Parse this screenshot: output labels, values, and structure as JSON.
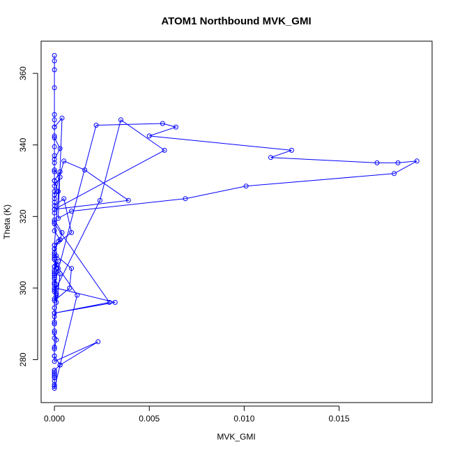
{
  "chart_data": {
    "type": "line",
    "title": "ATOM1 Northbound MVK_GMI",
    "xlabel": "MVK_GMI",
    "ylabel": "Theta (K)",
    "xlim": [
      -0.0007,
      0.0199
    ],
    "ylim": [
      268,
      369
    ],
    "x_ticks": [
      0.0,
      0.005,
      0.01,
      0.015
    ],
    "x_tick_labels": [
      "0.000",
      "0.005",
      "0.010",
      "0.015"
    ],
    "y_ticks": [
      280,
      300,
      320,
      340,
      360
    ],
    "y_tick_labels": [
      "280",
      "300",
      "320",
      "340",
      "360"
    ],
    "marker": "open-circle",
    "colors": {
      "series": "#0000ff",
      "axes": "#000000"
    },
    "grid": false,
    "legend": "none",
    "series": [
      {
        "x": [
          0.0,
          0.0,
          0.0,
          0.0,
          0.0,
          0.0,
          0.0,
          0.0,
          0.0,
          0.0,
          0.0,
          0.0,
          0.0,
          0.0,
          0.0,
          0.0,
          0.0,
          0.0,
          0.0003,
          0.0,
          0.0,
          0.0,
          0.0,
          0.0,
          0.0,
          0.0,
          0.0,
          0.0,
          0.0,
          0.0,
          0.0,
          0.0,
          0.0,
          0.0003,
          0.0,
          0.0,
          0.0,
          0.0,
          0.0,
          0.0,
          0.0,
          0.0012,
          0.0001,
          0.0001,
          0.0,
          0.0,
          0.0001,
          0.0001,
          0.0,
          0.0022,
          0.0057,
          0.0064,
          0.005,
          0.0125,
          0.0114,
          0.017,
          0.0181,
          0.0191,
          0.0179,
          0.0101,
          0.0069,
          0.0009,
          0.0002,
          0.0004,
          0.0,
          0.0,
          0.0003,
          0.0,
          0.0,
          0.0003,
          0.0,
          0.0,
          0.0005,
          0.0016,
          0.0039,
          0.0,
          0.0,
          0.0004,
          0.0003,
          0.0,
          0.0002,
          0.0,
          0.0,
          0.0001,
          0.0,
          0.0,
          0.0001,
          0.0,
          0.0024,
          0.0035,
          0.0058,
          0.0,
          0.0,
          0.0029,
          0.0,
          0.0,
          0.0003,
          0.0,
          0.0,
          0.0002,
          0.0,
          0.0,
          0.0001,
          0.0,
          0.0008,
          0.0009,
          0.0,
          0.0,
          0.0003,
          0.0,
          0.0002,
          0.0,
          0.0,
          0.0005,
          0.0009,
          0.0,
          0.0,
          0.0002,
          0.0,
          0.0,
          0.0,
          0.0001,
          0.0032,
          0.0,
          0.0,
          0.0,
          0.0001,
          0.0,
          0.0,
          0.0,
          0.0023,
          0.0003,
          0.0,
          0.0,
          0.0,
          0.0,
          0.0
        ],
        "y": [
          365.0,
          363.5,
          361.0,
          356.0,
          348.5,
          347.0,
          345.0,
          342.5,
          339.5,
          337.0,
          335.0,
          332.5,
          330.0,
          327.0,
          324.0,
          321.0,
          318.5,
          316.0,
          313.5,
          311.0,
          308.5,
          306.0,
          304.0,
          301.5,
          299.5,
          297.0,
          294.5,
          292.0,
          290.0,
          288.0,
          286.0,
          283.5,
          281.0,
          278.5,
          277.0,
          276.0,
          275.0,
          274.0,
          273.0,
          272.5,
          272.0,
          298.0,
          306.5,
          309.0,
          304.0,
          300.0,
          296.0,
          298.5,
          301.0,
          345.5,
          346.0,
          345.0,
          342.5,
          338.5,
          336.5,
          335.0,
          335.0,
          335.5,
          332.0,
          328.5,
          325.0,
          321.5,
          319.5,
          347.5,
          345.0,
          342.0,
          339.0,
          336.0,
          333.0,
          331.0,
          328.5,
          326.0,
          335.5,
          333.0,
          324.5,
          322.0,
          319.0,
          315.5,
          313.5,
          311.0,
          313.0,
          310.0,
          308.0,
          306.5,
          304.5,
          302.5,
          301.0,
          299.0,
          324.5,
          347.0,
          338.5,
          322.0,
          318.0,
          296.0,
          293.0,
          290.5,
          304.0,
          306.0,
          308.0,
          305.5,
          303.5,
          301.5,
          298.0,
          296.5,
          300.0,
          305.5,
          309.5,
          312.0,
          332.5,
          330.0,
          327.0,
          325.0,
          323.0,
          325.0,
          315.5,
          312.0,
          309.0,
          307.5,
          305.0,
          303.0,
          301.0,
          300.0,
          296.0,
          293.0,
          290.0,
          287.5,
          285.5,
          283.0,
          281.0,
          279.5,
          285.0,
          278.5,
          277.0,
          276.5,
          276.0,
          275.5,
          275.0
        ]
      }
    ]
  }
}
